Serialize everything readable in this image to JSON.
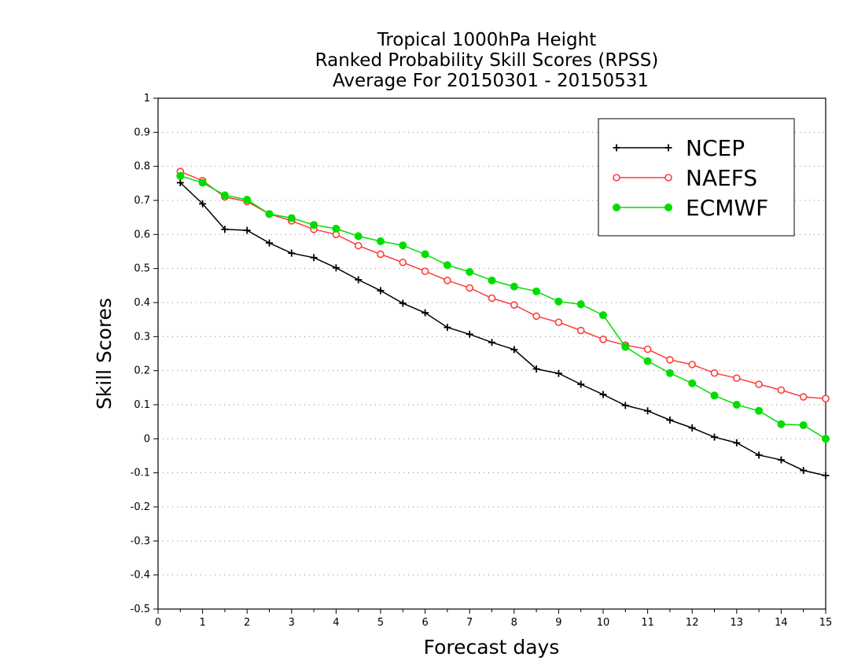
{
  "chart_data": {
    "type": "line",
    "title_lines": [
      "Tropical 1000hPa Height",
      "Ranked Probability Skill Scores (RPSS)",
      "Average For 20150301 - 20150531"
    ],
    "xlabel": "Forecast days",
    "ylabel": "Skill Scores",
    "xlim": [
      0,
      15
    ],
    "ylim": [
      -0.5,
      1
    ],
    "x_ticks": [
      "0",
      "1",
      "2",
      "3",
      "4",
      "5",
      "6",
      "7",
      "8",
      "9",
      "10",
      "11",
      "12",
      "13",
      "14",
      "15"
    ],
    "y_ticks": [
      "-0.5",
      "-0.4",
      "-0.3",
      "-0.2",
      "-0.1",
      "0",
      "0.1",
      "0.2",
      "0.3",
      "0.4",
      "0.5",
      "0.6",
      "0.7",
      "0.8",
      "0.9",
      "1"
    ],
    "grid": "horizontal dotted",
    "legend_position": "top-right",
    "x": [
      0.5,
      1,
      1.5,
      2,
      2.5,
      3,
      3.5,
      4,
      4.5,
      5,
      5.5,
      6,
      6.5,
      7,
      7.5,
      8,
      8.5,
      9,
      9.5,
      10,
      10.5,
      11,
      11.5,
      12,
      12.5,
      13,
      13.5,
      14,
      14.5,
      15
    ],
    "series": [
      {
        "name": "NCEP",
        "color": "#000000",
        "marker": "plus",
        "values": [
          0.752,
          0.69,
          0.615,
          0.612,
          0.575,
          0.545,
          0.532,
          0.502,
          0.467,
          0.435,
          0.398,
          0.37,
          0.327,
          0.307,
          0.283,
          0.262,
          0.205,
          0.192,
          0.16,
          0.13,
          0.098,
          0.082,
          0.055,
          0.032,
          0.005,
          -0.012,
          -0.048,
          -0.062,
          -0.093,
          -0.108
        ]
      },
      {
        "name": "NAEFS",
        "color": "#ff3b3b",
        "marker": "open-circle",
        "values": [
          0.785,
          0.758,
          0.71,
          0.697,
          0.66,
          0.64,
          0.615,
          0.6,
          0.567,
          0.542,
          0.518,
          0.492,
          0.465,
          0.443,
          0.413,
          0.393,
          0.36,
          0.342,
          0.318,
          0.292,
          0.275,
          0.263,
          0.232,
          0.218,
          0.193,
          0.178,
          0.16,
          0.143,
          0.123,
          0.118
        ]
      },
      {
        "name": "ECMWF",
        "color": "#00dd00",
        "marker": "filled-circle",
        "values": [
          0.772,
          0.752,
          0.715,
          0.702,
          0.66,
          0.648,
          0.628,
          0.617,
          0.595,
          0.58,
          0.568,
          0.542,
          0.51,
          0.49,
          0.465,
          0.447,
          0.433,
          0.403,
          0.395,
          0.363,
          0.27,
          0.228,
          0.193,
          0.163,
          0.127,
          0.1,
          0.082,
          0.043,
          0.04,
          0.0
        ]
      }
    ]
  }
}
